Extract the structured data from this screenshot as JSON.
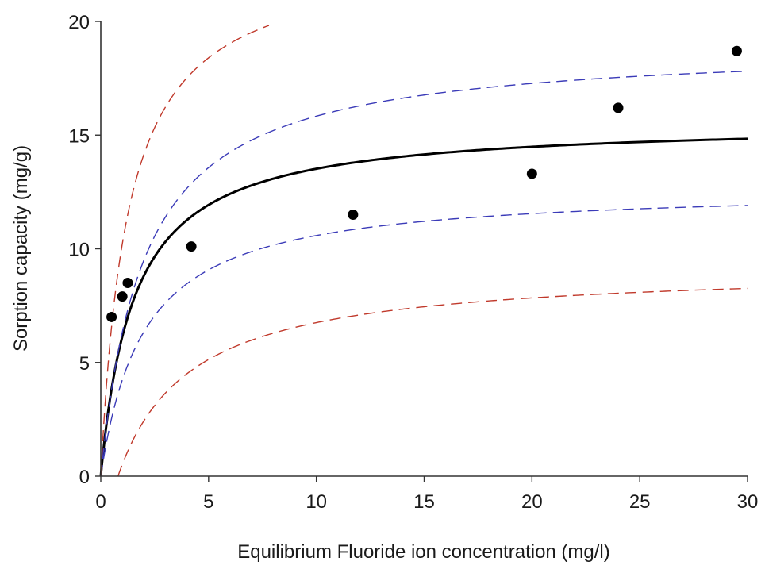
{
  "chart_data": {
    "type": "scatter",
    "title": "",
    "xlabel": "Equilibrium Fluoride ion concentration (mg/l)",
    "ylabel": "Sorption capacity (mg/g)",
    "xlim": [
      0,
      30
    ],
    "ylim": [
      0,
      20
    ],
    "xticks": [
      "0",
      "5",
      "10",
      "15",
      "20",
      "25",
      "30"
    ],
    "yticks": [
      "0",
      "5",
      "10",
      "15",
      "20"
    ],
    "grid": false,
    "legend": "none",
    "points": {
      "x": [
        0.5,
        1.0,
        1.25,
        4.2,
        11.7,
        20.0,
        24.0,
        29.5
      ],
      "y": [
        7.0,
        7.9,
        8.5,
        10.1,
        11.5,
        13.3,
        16.2,
        18.7
      ],
      "color": "#000000"
    },
    "curves": [
      {
        "style": "solid",
        "color": "#000000",
        "qmax": 15.6,
        "k": 0.65,
        "xmax": 30
      },
      {
        "style": "dashed",
        "color": "#3b3bb8",
        "qmax": 19.0,
        "k": 0.5,
        "xmax": 30
      },
      {
        "style": "dashed",
        "color": "#3b3bb8",
        "qmax": 12.7,
        "k": 0.5,
        "xmax": 30
      },
      {
        "style": "dashed",
        "color": "#c0392b",
        "qmax": 23.0,
        "k": 0.8,
        "xmax": 7.8
      },
      {
        "style": "dashed",
        "color": "#c0392b",
        "qmax": 9.2,
        "k": 0.3,
        "x0": 0.8,
        "xmax": 30
      }
    ]
  }
}
